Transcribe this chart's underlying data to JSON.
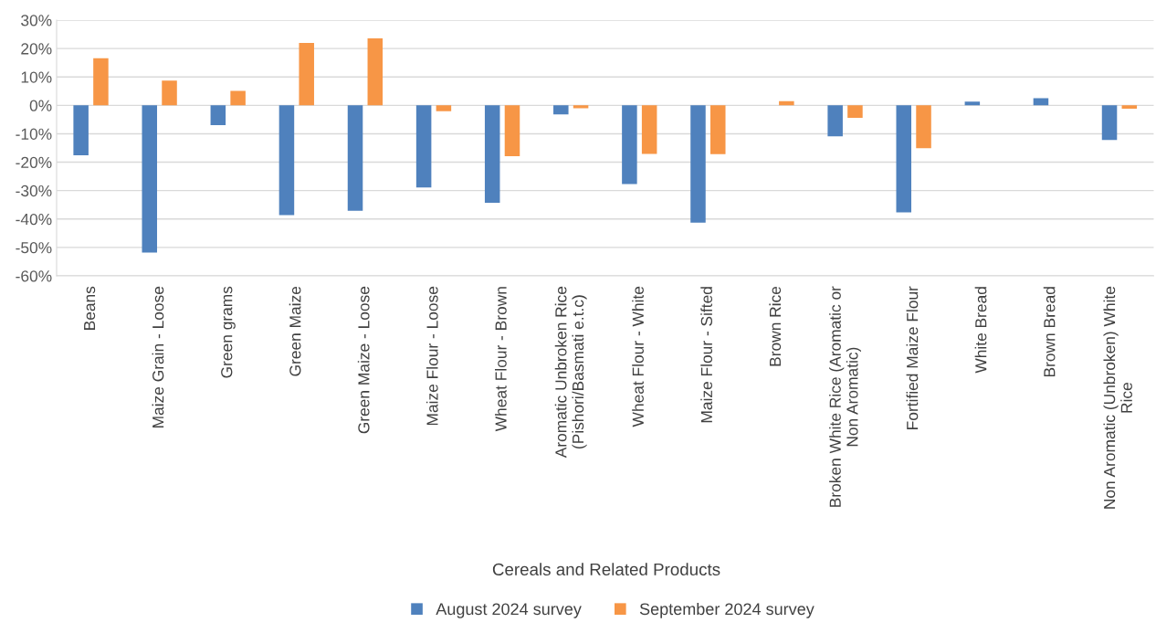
{
  "chart_data": {
    "type": "bar",
    "xlabel": "Cereals and Related Products",
    "categories": [
      "Beans",
      "Maize Grain - Loose",
      "Green grams",
      "Green Maize",
      "Green Maize - Loose",
      "Maize Flour - Loose",
      "Wheat Flour - Brown",
      "Aromatic Unbroken Rice\n(Pishori/Basmati e.t.c)",
      "Wheat Flour - White",
      "Maize Flour - Sifted",
      "Brown Rice",
      "Broken White Rice (Aromatic or\nNon Aromatic)",
      "Fortified Maize Flour",
      "White Bread",
      "Brown Bread",
      "Non Aromatic (Unbroken) White\nRice"
    ],
    "series": [
      {
        "name": "August 2024 survey",
        "color": "#4f81bd",
        "values": [
          -17.6,
          -51.8,
          -7.0,
          -38.6,
          -37.1,
          -28.9,
          -34.3,
          -3.2,
          -27.7,
          -41.3,
          null,
          -10.9,
          -37.7,
          1.3,
          2.5,
          -12.2
        ]
      },
      {
        "name": "September 2024 survey",
        "color": "#f79646",
        "values": [
          16.6,
          8.7,
          5.1,
          22.0,
          23.6,
          -2.1,
          -17.9,
          -1.0,
          -17.1,
          -17.2,
          1.5,
          -4.4,
          -15.1,
          null,
          null,
          -1.2
        ]
      }
    ],
    "ylim": [
      -60,
      30
    ],
    "yticks": [
      {
        "value": -60,
        "label": "-60%"
      },
      {
        "value": -50,
        "label": "-50%"
      },
      {
        "value": -40,
        "label": "-40%"
      },
      {
        "value": -30,
        "label": "-30%"
      },
      {
        "value": -20,
        "label": "-20%"
      },
      {
        "value": -10,
        "label": "-10%"
      },
      {
        "value": 0,
        "label": "0%"
      },
      {
        "value": 10,
        "label": "10%"
      },
      {
        "value": 20,
        "label": "20%"
      },
      {
        "value": 30,
        "label": "30%"
      }
    ],
    "grid": "y",
    "legend": "bottom"
  }
}
